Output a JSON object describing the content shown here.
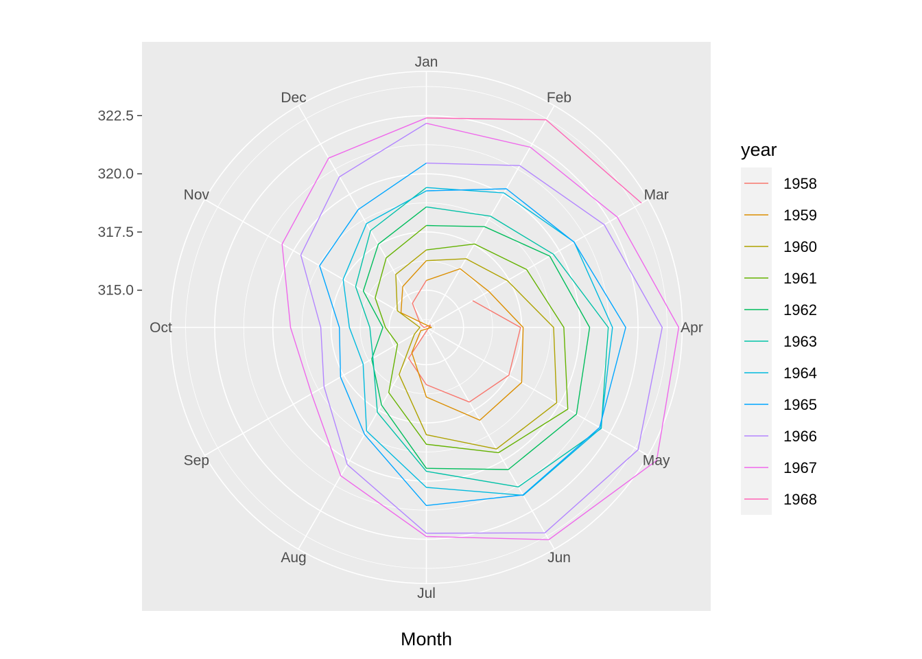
{
  "chart_data": {
    "type": "line",
    "coord": "polar",
    "title": "",
    "xlabel": "Month",
    "ylabel": "",
    "months": [
      "Jan",
      "Feb",
      "Mar",
      "Apr",
      "May",
      "Jun",
      "Jul",
      "Aug",
      "Sep",
      "Oct",
      "Nov",
      "Dec"
    ],
    "radial_ticks": [
      315.0,
      317.5,
      320.0,
      322.5
    ],
    "radial_tick_labels": [
      "315.0",
      "317.5",
      "320.0",
      "322.5"
    ],
    "rlim": [
      313.4,
      324.4
    ],
    "grid": true,
    "legend": {
      "title": "year",
      "position": "right"
    },
    "series": [
      {
        "name": "1958",
        "color": "#F8766D",
        "values": [
          null,
          null,
          315.7,
          317.45,
          317.5,
          317.1,
          315.86,
          314.93,
          313.2,
          313.5,
          313.7,
          314.6
        ]
      },
      {
        "name": "1959",
        "color": "#DB8E00",
        "values": [
          315.42,
          316.31,
          316.5,
          317.56,
          318.13,
          318.0,
          316.39,
          314.65,
          313.68,
          313.18,
          314.66,
          315.43
        ]
      },
      {
        "name": "1960",
        "color": "#AEA200",
        "values": [
          316.27,
          316.81,
          317.42,
          318.87,
          319.87,
          319.43,
          318.01,
          315.74,
          314.0,
          313.68,
          314.84,
          316.03
        ]
      },
      {
        "name": "1961",
        "color": "#64B200",
        "values": [
          316.73,
          317.54,
          318.38,
          319.31,
          320.42,
          319.61,
          318.42,
          316.63,
          314.83,
          315.16,
          315.94,
          316.85
        ]
      },
      {
        "name": "1962",
        "color": "#00BD5C",
        "values": [
          317.78,
          318.4,
          319.53,
          320.42,
          320.85,
          320.45,
          319.45,
          317.25,
          316.11,
          315.27,
          316.53,
          317.53
        ]
      },
      {
        "name": "1963",
        "color": "#00C1A7",
        "values": [
          318.58,
          318.92,
          319.7,
          321.22,
          322.08,
          321.31,
          319.58,
          317.61,
          316.05,
          315.83,
          316.91,
          318.2
        ]
      },
      {
        "name": "1964",
        "color": "#00BADE",
        "values": [
          319.41,
          320.07,
          320.74,
          321.4,
          322.06,
          321.73,
          320.27,
          318.54,
          316.54,
          316.71,
          317.53,
          318.55
        ]
      },
      {
        "name": "1965",
        "color": "#00A6FF",
        "values": [
          319.27,
          320.28,
          320.73,
          321.97,
          322.0,
          321.71,
          321.05,
          318.71,
          317.66,
          317.14,
          318.7,
          319.25
        ]
      },
      {
        "name": "1966",
        "color": "#B385FF",
        "values": [
          320.46,
          321.43,
          322.23,
          323.54,
          323.91,
          323.59,
          322.24,
          320.2,
          318.48,
          317.94,
          319.63,
          320.87
        ]
      },
      {
        "name": "1967",
        "color": "#EF67EB",
        "values": [
          322.17,
          322.34,
          322.88,
          324.25,
          324.83,
          323.93,
          322.38,
          320.76,
          319.1,
          319.24,
          320.56,
          321.8
        ]
      },
      {
        "name": "1968",
        "color": "#FF63B6",
        "values": [
          322.4,
          323.7,
          324.08,
          null,
          null,
          null,
          null,
          null,
          null,
          null,
          null,
          null
        ]
      }
    ]
  }
}
